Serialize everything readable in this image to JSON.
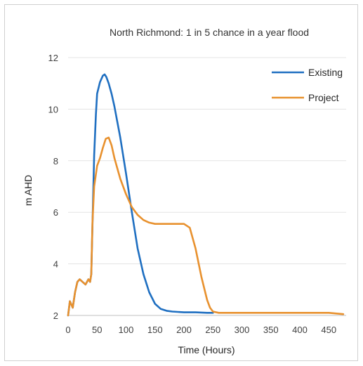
{
  "chart_data": {
    "type": "line",
    "title": "North Richmond: 1 in 5 chance in a year flood",
    "xlabel": "Time (Hours)",
    "ylabel": "m AHD",
    "xlim": [
      0,
      480
    ],
    "ylim": [
      2,
      12
    ],
    "xticks": [
      0,
      50,
      100,
      150,
      200,
      250,
      300,
      350,
      400,
      450
    ],
    "yticks": [
      2,
      4,
      6,
      8,
      10,
      12
    ],
    "grid": "horizontal",
    "legend_position": "top-right",
    "series": [
      {
        "name": "Existing",
        "color": "#1f6fc1",
        "x": [
          0,
          3,
          8,
          12,
          16,
          20,
          25,
          30,
          35,
          38,
          40,
          42,
          45,
          48,
          50,
          55,
          60,
          63,
          66,
          70,
          75,
          80,
          90,
          100,
          110,
          120,
          130,
          140,
          150,
          160,
          170,
          180,
          200,
          220,
          240,
          250
        ],
        "y": [
          2.0,
          2.55,
          2.3,
          2.9,
          3.3,
          3.4,
          3.3,
          3.2,
          3.4,
          3.3,
          3.6,
          5.5,
          8.2,
          9.8,
          10.6,
          11.05,
          11.3,
          11.35,
          11.25,
          11.0,
          10.6,
          10.1,
          8.9,
          7.5,
          6.0,
          4.6,
          3.6,
          2.9,
          2.45,
          2.25,
          2.18,
          2.15,
          2.12,
          2.12,
          2.1,
          2.1
        ]
      },
      {
        "name": "Project",
        "color": "#e8912e",
        "x": [
          0,
          3,
          8,
          12,
          16,
          20,
          25,
          30,
          35,
          38,
          40,
          42,
          45,
          50,
          55,
          60,
          65,
          70,
          75,
          80,
          90,
          100,
          110,
          120,
          130,
          140,
          150,
          160,
          170,
          180,
          190,
          200,
          210,
          220,
          230,
          240,
          245,
          250,
          260,
          300,
          350,
          400,
          450,
          475
        ],
        "y": [
          2.0,
          2.55,
          2.3,
          2.9,
          3.3,
          3.4,
          3.3,
          3.2,
          3.4,
          3.3,
          3.6,
          5.6,
          7.0,
          7.8,
          8.1,
          8.5,
          8.85,
          8.9,
          8.6,
          8.1,
          7.3,
          6.7,
          6.2,
          5.9,
          5.7,
          5.6,
          5.55,
          5.55,
          5.55,
          5.55,
          5.55,
          5.55,
          5.4,
          4.6,
          3.5,
          2.6,
          2.3,
          2.15,
          2.1,
          2.1,
          2.1,
          2.1,
          2.1,
          2.05
        ]
      }
    ]
  }
}
